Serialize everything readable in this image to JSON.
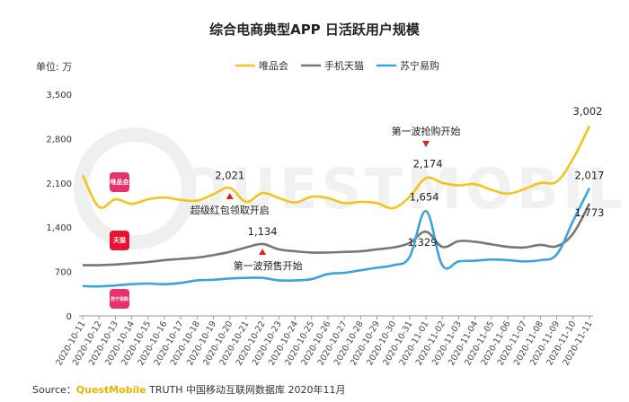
{
  "chart_data": {
    "type": "line",
    "title": "综合电商典型APP 日活跃用户规模",
    "unit_label": "单位: 万",
    "ylim": [
      0,
      3500
    ],
    "yticks": [
      "0",
      "700",
      "1,400",
      "2,100",
      "2,800",
      "3,500"
    ],
    "ytick_values": [
      0,
      700,
      1400,
      2100,
      2800,
      3500
    ],
    "grid": false,
    "legend_position": "top",
    "x": [
      "2020-10-11",
      "2020-10-12",
      "2020-10-13",
      "2020-10-14",
      "2020-10-15",
      "2020-10-16",
      "2020-10-17",
      "2020-10-18",
      "2020-10-19",
      "2020-10-20",
      "2020-10-21",
      "2020-10-22",
      "2020-10-23",
      "2020-10-24",
      "2020-10-25",
      "2020-10-26",
      "2020-10-27",
      "2020-10-28",
      "2020-10-29",
      "2020-10-30",
      "2020-10-31",
      "2020-11-01",
      "2020-11-02",
      "2020-11-03",
      "2020-11-04",
      "2020-11-05",
      "2020-11-06",
      "2020-11-07",
      "2020-11-08",
      "2020-11-09",
      "2020-11-10",
      "2020-11-11"
    ],
    "series": [
      {
        "name": "唯品会",
        "color": "#f5c31a",
        "values": [
          2220,
          1720,
          1840,
          1770,
          1840,
          1870,
          1830,
          1820,
          1920,
          2021,
          1800,
          1940,
          1860,
          1790,
          1880,
          1860,
          1780,
          1800,
          1780,
          1700,
          1880,
          2174,
          2100,
          2060,
          2080,
          1990,
          1930,
          2000,
          2100,
          2120,
          2480,
          3002
        ]
      },
      {
        "name": "手机天猫",
        "color": "#777777",
        "values": [
          800,
          800,
          810,
          830,
          850,
          880,
          900,
          920,
          960,
          1010,
          1080,
          1134,
          1050,
          1020,
          1000,
          1000,
          1010,
          1020,
          1050,
          1080,
          1150,
          1329,
          1090,
          1180,
          1170,
          1130,
          1090,
          1080,
          1120,
          1100,
          1300,
          1773
        ]
      },
      {
        "name": "苏宁易购",
        "color": "#3aa3de",
        "values": [
          470,
          465,
          480,
          500,
          510,
          500,
          520,
          560,
          570,
          590,
          600,
          600,
          560,
          560,
          580,
          660,
          680,
          720,
          760,
          800,
          930,
          1654,
          800,
          860,
          870,
          890,
          880,
          860,
          880,
          970,
          1500,
          2017
        ]
      }
    ],
    "data_labels": [
      {
        "series": 0,
        "index": 9,
        "text": "2,021"
      },
      {
        "series": 0,
        "index": 21,
        "text": "2,174"
      },
      {
        "series": 0,
        "index": 31,
        "text": "3,002"
      },
      {
        "series": 1,
        "index": 11,
        "text": "1,134"
      },
      {
        "series": 1,
        "index": 21,
        "text": "1,329"
      },
      {
        "series": 1,
        "index": 31,
        "text": "1,773"
      },
      {
        "series": 2,
        "index": 21,
        "text": "1,654"
      },
      {
        "series": 2,
        "index": 31,
        "text": "2,017"
      }
    ],
    "annotations": [
      {
        "text": "超级红包领取开启",
        "index": 10
      },
      {
        "text": "第一波预售开始",
        "index": 11
      },
      {
        "text": "第一波抢购开始",
        "index": 21
      }
    ],
    "app_icons": [
      {
        "name": "vipshop-icon",
        "text": "唯品会",
        "color": "#e8306a"
      },
      {
        "name": "tmall-icon",
        "text": "天猫",
        "color": "#e8132e"
      },
      {
        "name": "suning-icon",
        "text": "苏宁易购",
        "color": "#e8306a"
      }
    ]
  },
  "source": {
    "prefix": "Source：",
    "brand": "QuestMobile",
    "rest": " TRUTH 中国移动互联网数据库 2020年11月"
  },
  "watermark": "QUESTMOBILE"
}
